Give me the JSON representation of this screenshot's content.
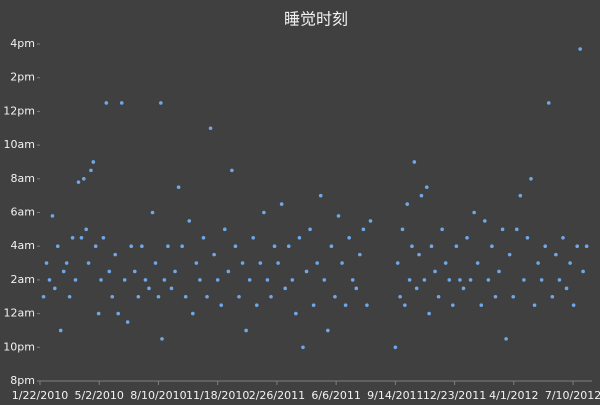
{
  "chart_data": {
    "type": "scatter",
    "title": "睡觉时刻",
    "color": "#6fa8e8",
    "xlim": [
      "2010-01-22",
      "2012-08-11"
    ],
    "xticks": [
      {
        "value": "2010-01-22",
        "label": "1/22/2010"
      },
      {
        "value": "2010-05-02",
        "label": "5/2/2010"
      },
      {
        "value": "2010-08-10",
        "label": "8/10/2010"
      },
      {
        "value": "2010-11-18",
        "label": "11/18/2010"
      },
      {
        "value": "2011-02-26",
        "label": "2/26/2011"
      },
      {
        "value": "2011-06-06",
        "label": "6/6/2011"
      },
      {
        "value": "2011-09-14",
        "label": "9/14/2011"
      },
      {
        "value": "2011-12-23",
        "label": "12/23/2011"
      },
      {
        "value": "2012-04-01",
        "label": "4/1/2012"
      },
      {
        "value": "2012-07-10",
        "label": "7/10/2012"
      }
    ],
    "ylim": [
      20,
      40
    ],
    "yticks": [
      {
        "value": 20,
        "label": "8pm"
      },
      {
        "value": 22,
        "label": "10pm"
      },
      {
        "value": 24,
        "label": "12am"
      },
      {
        "value": 26,
        "label": "2am"
      },
      {
        "value": 28,
        "label": "4am"
      },
      {
        "value": 30,
        "label": "6am"
      },
      {
        "value": 32,
        "label": "8am"
      },
      {
        "value": 34,
        "label": "10am"
      },
      {
        "value": 36,
        "label": "12pm"
      },
      {
        "value": 38,
        "label": "2pm"
      },
      {
        "value": 40,
        "label": "4pm"
      }
    ],
    "x": [
      "2010-01-28",
      "2010-02-02",
      "2010-02-07",
      "2010-02-12",
      "2010-02-16",
      "2010-02-21",
      "2010-02-26",
      "2010-03-03",
      "2010-03-08",
      "2010-03-13",
      "2010-03-18",
      "2010-03-23",
      "2010-03-28",
      "2010-04-02",
      "2010-04-06",
      "2010-04-10",
      "2010-04-14",
      "2010-04-18",
      "2010-04-22",
      "2010-04-26",
      "2010-05-01",
      "2010-05-05",
      "2010-05-09",
      "2010-05-14",
      "2010-05-19",
      "2010-05-24",
      "2010-05-29",
      "2010-06-03",
      "2010-06-09",
      "2010-06-14",
      "2010-06-19",
      "2010-06-25",
      "2010-07-01",
      "2010-07-07",
      "2010-07-13",
      "2010-07-19",
      "2010-07-25",
      "2010-07-31",
      "2010-08-05",
      "2010-08-10",
      "2010-08-14",
      "2010-08-16",
      "2010-08-20",
      "2010-08-26",
      "2010-09-01",
      "2010-09-07",
      "2010-09-13",
      "2010-09-19",
      "2010-09-25",
      "2010-10-01",
      "2010-10-07",
      "2010-10-13",
      "2010-10-19",
      "2010-10-25",
      "2010-10-31",
      "2010-11-06",
      "2010-11-12",
      "2010-11-18",
      "2010-11-24",
      "2010-11-30",
      "2010-12-06",
      "2010-12-12",
      "2010-12-18",
      "2010-12-24",
      "2010-12-30",
      "2011-01-05",
      "2011-01-11",
      "2011-01-17",
      "2011-01-23",
      "2011-01-29",
      "2011-02-04",
      "2011-02-10",
      "2011-02-16",
      "2011-02-22",
      "2011-02-28",
      "2011-03-06",
      "2011-03-12",
      "2011-03-18",
      "2011-03-24",
      "2011-03-30",
      "2011-04-05",
      "2011-04-11",
      "2011-04-17",
      "2011-04-23",
      "2011-04-29",
      "2011-05-05",
      "2011-05-11",
      "2011-05-17",
      "2011-05-23",
      "2011-05-29",
      "2011-06-04",
      "2011-06-10",
      "2011-06-16",
      "2011-06-22",
      "2011-06-28",
      "2011-07-04",
      "2011-07-10",
      "2011-07-16",
      "2011-07-22",
      "2011-07-28",
      "2011-08-03",
      "2011-09-14",
      "2011-09-18",
      "2011-09-22",
      "2011-09-26",
      "2011-09-30",
      "2011-10-04",
      "2011-10-08",
      "2011-10-12",
      "2011-10-16",
      "2011-10-20",
      "2011-10-24",
      "2011-10-28",
      "2011-11-02",
      "2011-11-06",
      "2011-11-10",
      "2011-11-14",
      "2011-11-20",
      "2011-11-26",
      "2011-12-02",
      "2011-12-08",
      "2011-12-14",
      "2011-12-20",
      "2011-12-26",
      "2012-01-01",
      "2012-01-07",
      "2012-01-13",
      "2012-01-19",
      "2012-01-25",
      "2012-01-31",
      "2012-02-06",
      "2012-02-12",
      "2012-02-18",
      "2012-02-24",
      "2012-03-01",
      "2012-03-07",
      "2012-03-13",
      "2012-03-19",
      "2012-03-25",
      "2012-03-31",
      "2012-04-06",
      "2012-04-12",
      "2012-04-18",
      "2012-04-24",
      "2012-04-30",
      "2012-05-06",
      "2012-05-12",
      "2012-05-18",
      "2012-05-24",
      "2012-05-30",
      "2012-06-05",
      "2012-06-11",
      "2012-06-17",
      "2012-06-23",
      "2012-06-29",
      "2012-07-05",
      "2012-07-11",
      "2012-07-17",
      "2012-07-22",
      "2012-07-27",
      "2012-08-02"
    ],
    "values": [
      25,
      27,
      26,
      29.8,
      25.5,
      28,
      23,
      26.5,
      27,
      25,
      28.5,
      26,
      31.8,
      28.5,
      32,
      29,
      27,
      32.5,
      33,
      28,
      24,
      26,
      28.5,
      36.5,
      26.5,
      25,
      27.5,
      24,
      36.5,
      26,
      23.5,
      28,
      26.5,
      25,
      28,
      26,
      25.5,
      30,
      27,
      25,
      36.5,
      22.5,
      26,
      28,
      25.5,
      26.5,
      31.5,
      28,
      25,
      29.5,
      24,
      27,
      26,
      28.5,
      25,
      35,
      27.5,
      26,
      24.5,
      29,
      26.5,
      32.5,
      28,
      25,
      27,
      23,
      26,
      28.5,
      24.5,
      27,
      30,
      26,
      25,
      28,
      27,
      30.5,
      25.5,
      28,
      26,
      24,
      28.5,
      22,
      26.5,
      29,
      24.5,
      27,
      31,
      26,
      23,
      28,
      25,
      29.8,
      27,
      24.5,
      28.5,
      26,
      25.5,
      27.5,
      29,
      24.5,
      29.5,
      22,
      27,
      25,
      29,
      24.5,
      30.5,
      26,
      28,
      33,
      25.5,
      27.5,
      31,
      26,
      31.5,
      24,
      28,
      26.5,
      25,
      29,
      27,
      26,
      24.5,
      28,
      26,
      25.5,
      28.5,
      26,
      30,
      27,
      24.5,
      29.5,
      26,
      28,
      25,
      26.5,
      29,
      22.5,
      27.5,
      25,
      29,
      31,
      26,
      28.5,
      32,
      24.5,
      27,
      26,
      28,
      36.5,
      25,
      27.5,
      26,
      28.5,
      25.5,
      27,
      24.5,
      28,
      39.7,
      26.5,
      28
    ]
  }
}
